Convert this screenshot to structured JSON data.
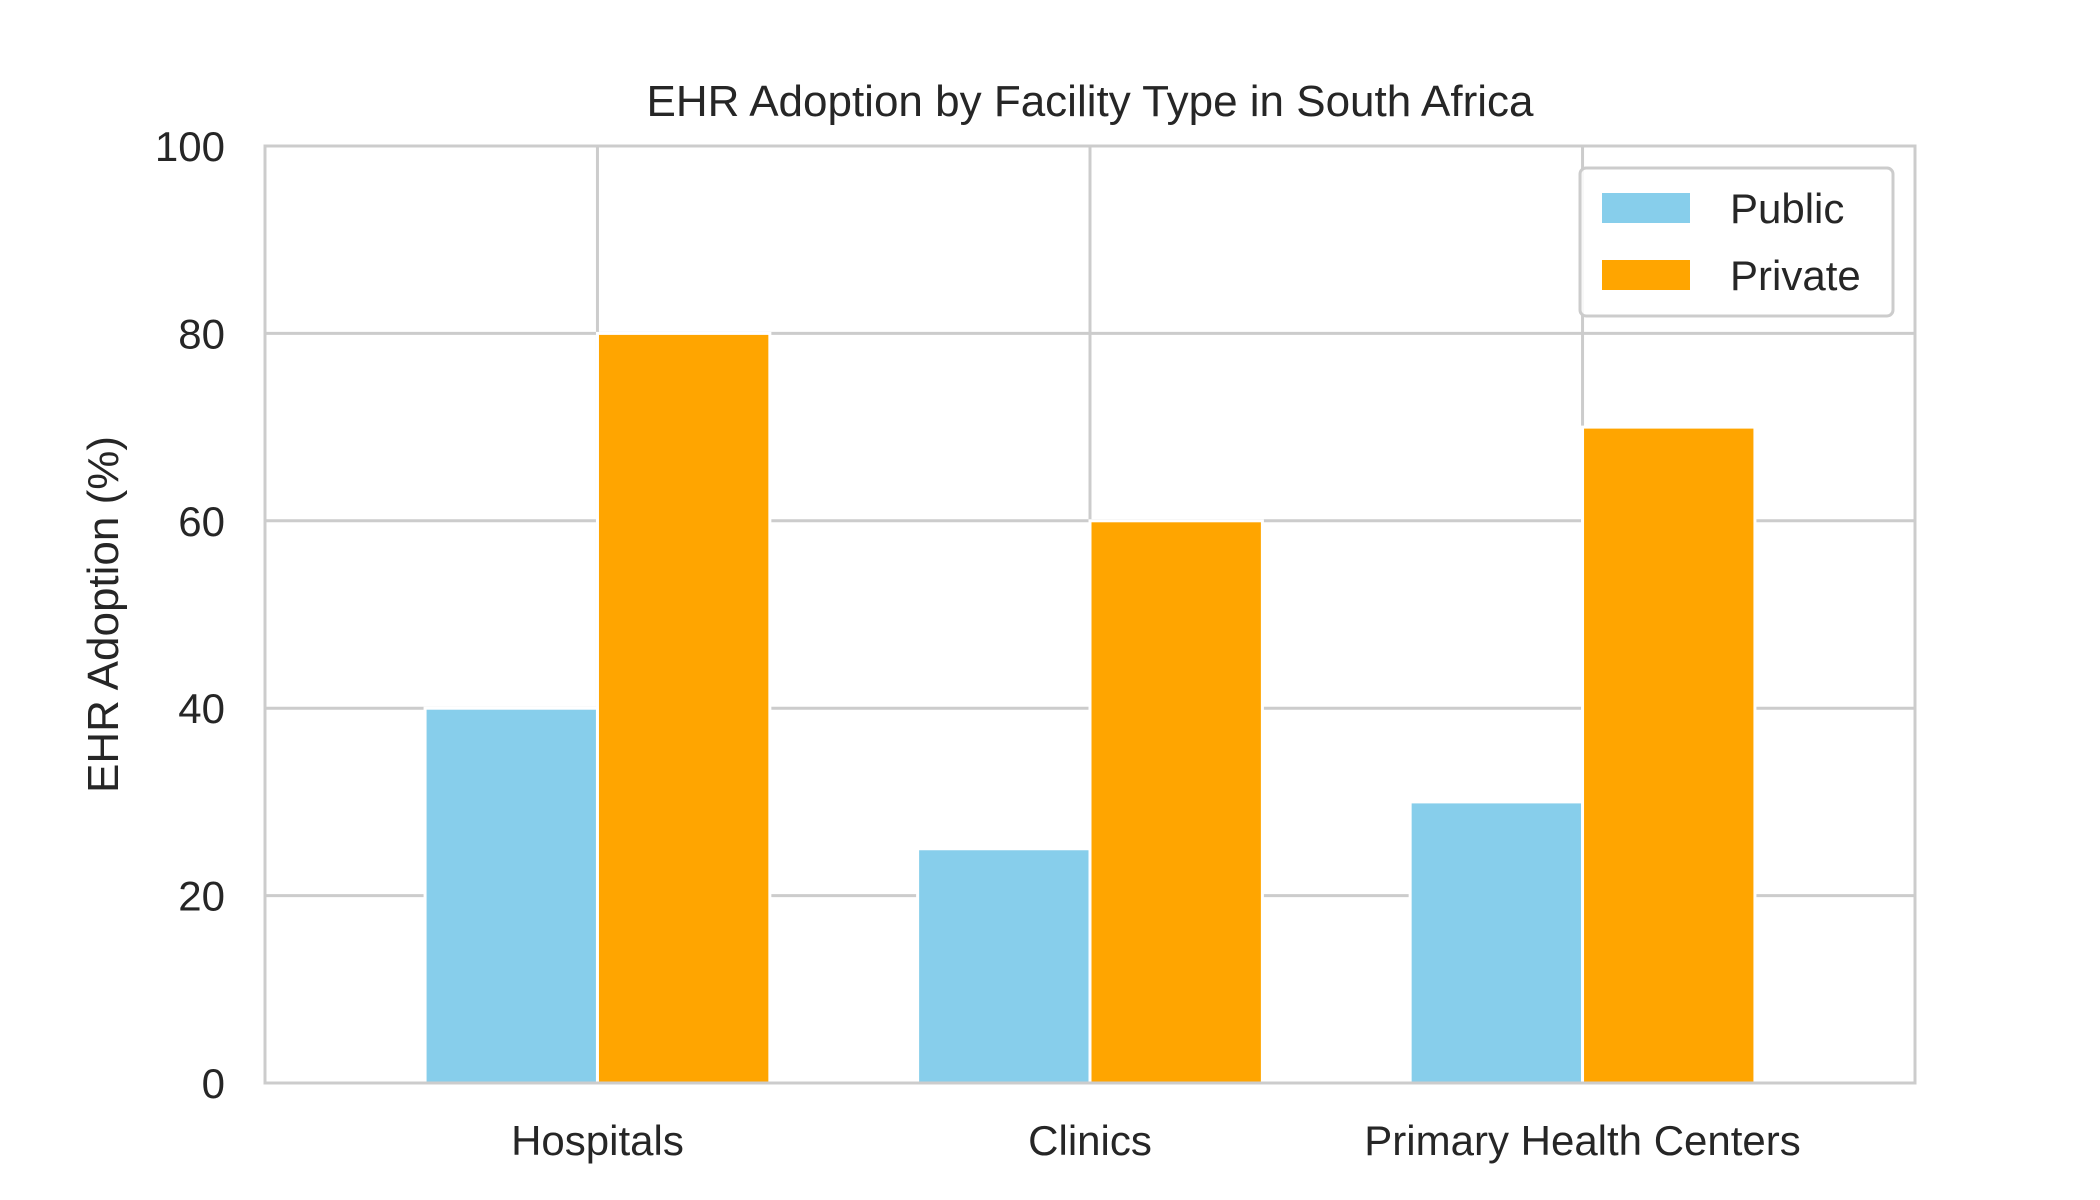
{
  "chart_data": {
    "type": "bar",
    "title": "EHR Adoption by Facility Type in South Africa",
    "xlabel": "",
    "ylabel": "EHR Adoption (%)",
    "categories": [
      "Hospitals",
      "Clinics",
      "Primary Health Centers"
    ],
    "series": [
      {
        "name": "Public",
        "values": [
          40,
          25,
          30
        ],
        "color": "#87CEEB"
      },
      {
        "name": "Private",
        "values": [
          80,
          60,
          70
        ],
        "color": "#FFA500"
      }
    ],
    "ylim": [
      0,
      100
    ],
    "yticks": [
      0,
      20,
      40,
      60,
      80,
      100
    ],
    "grid": true,
    "legend_position": "top-right"
  }
}
